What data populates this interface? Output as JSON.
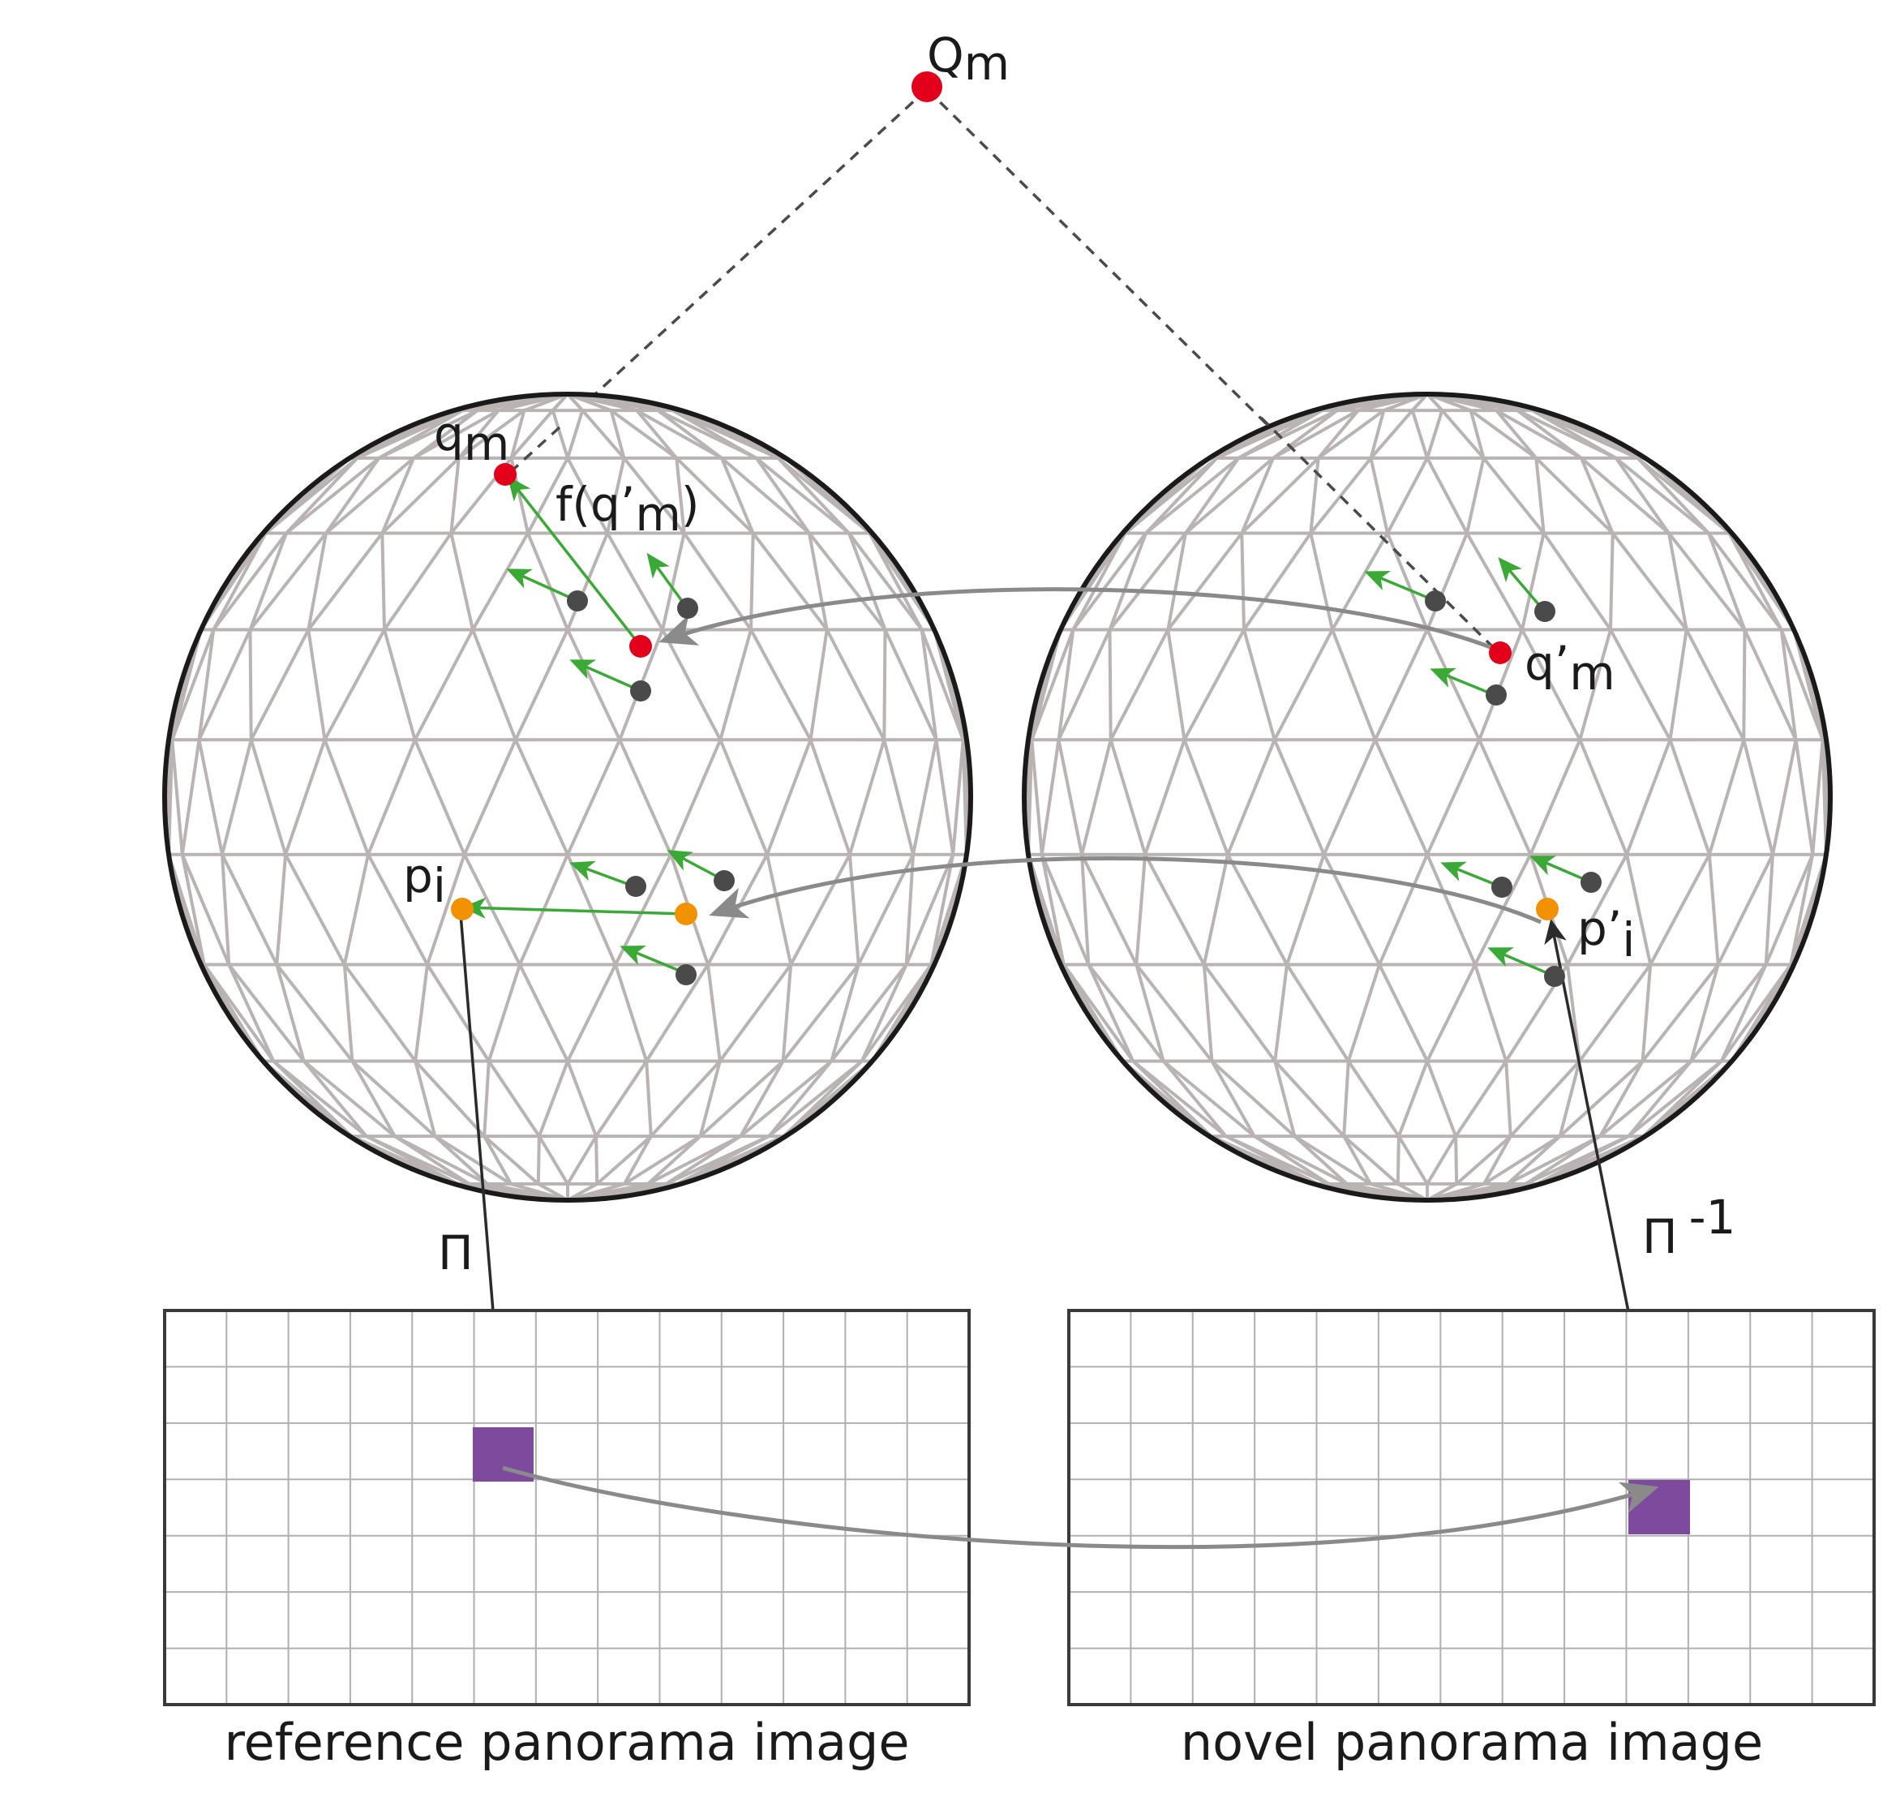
{
  "labels": {
    "Q_main": "Q",
    "Q_sub": "m",
    "q_main": "q",
    "q_sub": "m",
    "f_main": "f(q’",
    "f_sub": "m",
    "f_close": ")",
    "qp_main": "q’",
    "qp_sub": "m",
    "p_main": "p",
    "p_sub": "i",
    "pp_main": "p’",
    "pp_sub": "i",
    "pi": "Π",
    "pi_inv_main": "Π",
    "pi_inv_sup": "-1"
  },
  "captions": {
    "reference": "reference panorama image",
    "novel": "novel panorama image"
  },
  "colors": {
    "sphere_outline": "#1a1a1a",
    "mesh": "#b9b3b3",
    "red_point": "#e2001a",
    "orange_point": "#f39200",
    "gray_point": "#4a4a4a",
    "green_arrow": "#3aa935",
    "dark_arrow": "#2b2b2b",
    "curve_arrow": "#8a8a8a",
    "pixel": "#7d4a9e",
    "grid": "#b0b0b0"
  }
}
